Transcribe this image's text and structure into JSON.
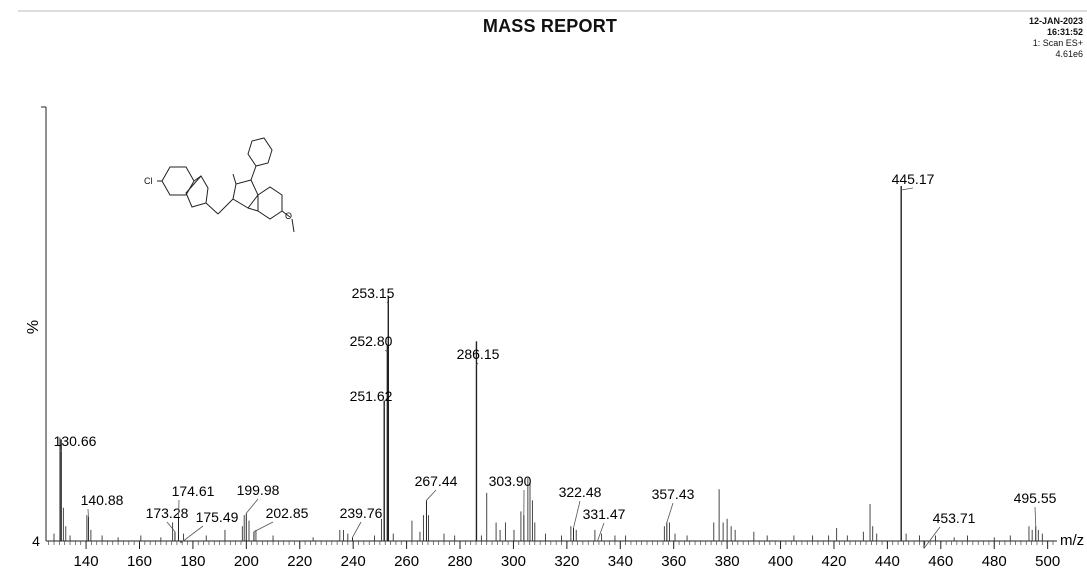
{
  "report": {
    "title": "MASS REPORT",
    "date": "12-JAN-2023",
    "time": "16:31:52",
    "scan": "1: Scan ES+",
    "intensity": "4.61e6"
  },
  "structure": {
    "substituent_labels": [
      "Cl",
      "O"
    ]
  },
  "chart_data": {
    "type": "bar",
    "xlabel": "m/z",
    "ylabel": "%",
    "y_floor_label": "4",
    "xlim": [
      125,
      502
    ],
    "ylim": [
      4,
      100
    ],
    "x_ticks": [
      140,
      160,
      180,
      200,
      220,
      240,
      260,
      280,
      300,
      320,
      340,
      360,
      380,
      400,
      420,
      440,
      460,
      480,
      500
    ],
    "labeled_peaks": [
      {
        "mz": 130.66,
        "label": "130.66",
        "intensity": 31.5
      },
      {
        "mz": 140.88,
        "label": "140.88",
        "intensity": 10.5
      },
      {
        "mz": 173.28,
        "label": "173.28",
        "intensity": 6.5
      },
      {
        "mz": 174.61,
        "label": "174.61",
        "intensity": 10.5
      },
      {
        "mz": 175.49,
        "label": "175.49",
        "intensity": 3.5
      },
      {
        "mz": 199.98,
        "label": "199.98",
        "intensity": 11.5
      },
      {
        "mz": 202.85,
        "label": "202.85",
        "intensity": 6.5
      },
      {
        "mz": 239.76,
        "label": "239.76",
        "intensity": 5.0
      },
      {
        "mz": 251.62,
        "label": "251.62",
        "intensity": 42.0
      },
      {
        "mz": 252.8,
        "label": "252.80",
        "intensity": 57.0
      },
      {
        "mz": 253.15,
        "label": "253.15",
        "intensity": 70.0
      },
      {
        "mz": 267.44,
        "label": "267.44",
        "intensity": 15.0
      },
      {
        "mz": 286.15,
        "label": "286.15",
        "intensity": 58.0
      },
      {
        "mz": 303.9,
        "label": "303.90",
        "intensity": 11.0
      },
      {
        "mz": 322.48,
        "label": "322.48",
        "intensity": 7.5
      },
      {
        "mz": 331.47,
        "label": "331.47",
        "intensity": 4.0
      },
      {
        "mz": 357.43,
        "label": "357.43",
        "intensity": 9.0
      },
      {
        "mz": 445.17,
        "label": "445.17",
        "intensity": 100.0
      },
      {
        "mz": 453.71,
        "label": "453.71",
        "intensity": 2.0
      },
      {
        "mz": 495.55,
        "label": "495.55",
        "intensity": 8.0
      }
    ],
    "minor_peaks": [
      {
        "mz": 128.0,
        "intensity": 2.0
      },
      {
        "mz": 130.2,
        "intensity": 28.0
      },
      {
        "mz": 131.5,
        "intensity": 9.0
      },
      {
        "mz": 132.4,
        "intensity": 4.0
      },
      {
        "mz": 134.0,
        "intensity": 1.5
      },
      {
        "mz": 140.3,
        "intensity": 7.0
      },
      {
        "mz": 141.8,
        "intensity": 3.0
      },
      {
        "mz": 146.0,
        "intensity": 1.5
      },
      {
        "mz": 152.0,
        "intensity": 1.0
      },
      {
        "mz": 160.5,
        "intensity": 1.5
      },
      {
        "mz": 168.0,
        "intensity": 1.0
      },
      {
        "mz": 172.4,
        "intensity": 5.0
      },
      {
        "mz": 176.5,
        "intensity": 2.0
      },
      {
        "mz": 185.0,
        "intensity": 1.5
      },
      {
        "mz": 192.0,
        "intensity": 3.0
      },
      {
        "mz": 198.5,
        "intensity": 4.0
      },
      {
        "mz": 199.2,
        "intensity": 7.0
      },
      {
        "mz": 201.0,
        "intensity": 5.5
      },
      {
        "mz": 203.6,
        "intensity": 3.0
      },
      {
        "mz": 210.0,
        "intensity": 1.5
      },
      {
        "mz": 225.0,
        "intensity": 1.0
      },
      {
        "mz": 235.0,
        "intensity": 3.0
      },
      {
        "mz": 236.4,
        "intensity": 3.0
      },
      {
        "mz": 238.0,
        "intensity": 2.0
      },
      {
        "mz": 248.0,
        "intensity": 1.5
      },
      {
        "mz": 250.6,
        "intensity": 6.0
      },
      {
        "mz": 255.0,
        "intensity": 2.0
      },
      {
        "mz": 262.0,
        "intensity": 5.5
      },
      {
        "mz": 265.0,
        "intensity": 2.5
      },
      {
        "mz": 266.3,
        "intensity": 7.0
      },
      {
        "mz": 268.2,
        "intensity": 7.0
      },
      {
        "mz": 274.0,
        "intensity": 2.0
      },
      {
        "mz": 278.0,
        "intensity": 1.5
      },
      {
        "mz": 288.0,
        "intensity": 1.5
      },
      {
        "mz": 290.0,
        "intensity": 13.0
      },
      {
        "mz": 293.5,
        "intensity": 5.0
      },
      {
        "mz": 295.0,
        "intensity": 3.0
      },
      {
        "mz": 297.0,
        "intensity": 5.0
      },
      {
        "mz": 300.2,
        "intensity": 3.0
      },
      {
        "mz": 302.8,
        "intensity": 8.0
      },
      {
        "mz": 305.4,
        "intensity": 17.0
      },
      {
        "mz": 306.2,
        "intensity": 16.0
      },
      {
        "mz": 307.1,
        "intensity": 11.0
      },
      {
        "mz": 308.0,
        "intensity": 5.0
      },
      {
        "mz": 312.0,
        "intensity": 2.0
      },
      {
        "mz": 318.0,
        "intensity": 1.5
      },
      {
        "mz": 321.5,
        "intensity": 4.0
      },
      {
        "mz": 323.5,
        "intensity": 3.0
      },
      {
        "mz": 330.5,
        "intensity": 3.0
      },
      {
        "mz": 333.0,
        "intensity": 2.0
      },
      {
        "mz": 338.0,
        "intensity": 1.5
      },
      {
        "mz": 342.0,
        "intensity": 1.5
      },
      {
        "mz": 356.5,
        "intensity": 4.0
      },
      {
        "mz": 358.4,
        "intensity": 5.0
      },
      {
        "mz": 360.5,
        "intensity": 2.0
      },
      {
        "mz": 365.0,
        "intensity": 1.5
      },
      {
        "mz": 375.0,
        "intensity": 5.0
      },
      {
        "mz": 377.0,
        "intensity": 14.0
      },
      {
        "mz": 378.5,
        "intensity": 5.0
      },
      {
        "mz": 380.0,
        "intensity": 6.0
      },
      {
        "mz": 381.5,
        "intensity": 4.0
      },
      {
        "mz": 383.0,
        "intensity": 3.0
      },
      {
        "mz": 390.0,
        "intensity": 2.5
      },
      {
        "mz": 395.0,
        "intensity": 1.5
      },
      {
        "mz": 405.0,
        "intensity": 1.5
      },
      {
        "mz": 412.0,
        "intensity": 1.5
      },
      {
        "mz": 418.0,
        "intensity": 1.5
      },
      {
        "mz": 421.0,
        "intensity": 3.5
      },
      {
        "mz": 425.0,
        "intensity": 1.5
      },
      {
        "mz": 431.0,
        "intensity": 2.5
      },
      {
        "mz": 433.5,
        "intensity": 10.0
      },
      {
        "mz": 434.5,
        "intensity": 4.0
      },
      {
        "mz": 436.0,
        "intensity": 2.0
      },
      {
        "mz": 447.0,
        "intensity": 2.0
      },
      {
        "mz": 452.0,
        "intensity": 1.5
      },
      {
        "mz": 458.0,
        "intensity": 1.5
      },
      {
        "mz": 465.0,
        "intensity": 1.0
      },
      {
        "mz": 470.0,
        "intensity": 1.5
      },
      {
        "mz": 480.0,
        "intensity": 1.0
      },
      {
        "mz": 486.0,
        "intensity": 1.5
      },
      {
        "mz": 493.0,
        "intensity": 4.0
      },
      {
        "mz": 494.2,
        "intensity": 3.0
      },
      {
        "mz": 496.5,
        "intensity": 3.0
      },
      {
        "mz": 498.0,
        "intensity": 2.0
      }
    ]
  }
}
